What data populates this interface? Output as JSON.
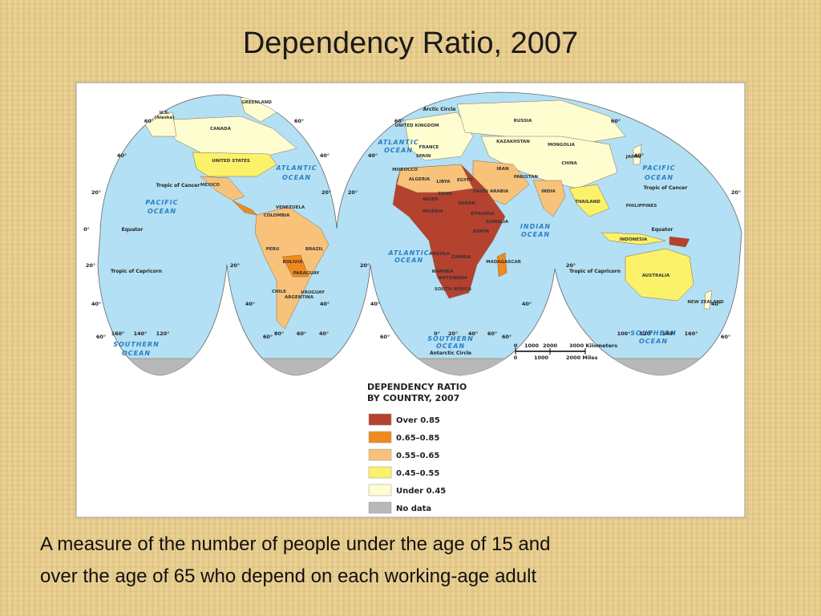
{
  "title": "Dependency Ratio, 2007",
  "caption": [
    "A measure of the number of people under the age of 15 and",
    "over the age of 65 who depend on each working-age adult"
  ],
  "map": {
    "labels": [
      "GREENLAND",
      "U.S.",
      "(Alaska)",
      "CANADA",
      "UNITED STATES",
      "MEXICO",
      "ATLANTIC",
      "OCEAN",
      "PACIFIC",
      "OCEAN",
      "Tropic of Cancer",
      "Equator",
      "Tropic of Capricorn",
      "BRAZIL",
      "PERU",
      "BOLIVIA",
      "ARGENTINA",
      "CHILE",
      "COLOMBIA",
      "VENEZUELA",
      "PARAGUAY",
      "URUGUAY",
      "SOUTHERN",
      "OCEAN",
      "Arctic Circle",
      "RUSSIA",
      "KAZAKHSTAN",
      "MONGOLIA",
      "CHINA",
      "INDIA",
      "IRAN",
      "ALGERIA",
      "LIBYA",
      "EGYPT",
      "SUDAN",
      "NIGER",
      "CHAD",
      "NIGERIA",
      "ETHIOPIA",
      "SOMALIA",
      "KENYA",
      "ANGOLA",
      "ZAMBIA",
      "NAMIBIA",
      "BOTSWANA",
      "SOUTH AFRICA",
      "MADAGASCAR",
      "ATLANTIC",
      "OCEAN",
      "ATLANTIC",
      "OCEAN",
      "INDIAN",
      "OCEAN",
      "SOUTHERN",
      "OCEAN",
      "Antarctic Circle",
      "PACIFIC",
      "OCEAN",
      "Tropic of Cancer",
      "Equator",
      "INDONESIA",
      "AUSTRALIA",
      "Tropic of Capricorn",
      "PHILIPPINES",
      "JAPAN",
      "NEW ZEALAND",
      "SOUTHERN",
      "OCEAN",
      "THAILAND",
      "PAKISTAN",
      "SAUDI ARABIA",
      "MOROCCO",
      "FRANCE",
      "SPAIN",
      "UNITED KINGDOM"
    ],
    "graticule_labels": [
      "60°",
      "40°",
      "20°",
      "0°",
      "20°",
      "40°",
      "60°",
      "40°",
      "20°",
      "20°",
      "40°",
      "60°",
      "60°",
      "40°",
      "20°",
      "20°",
      "40°",
      "60°",
      "60°",
      "40°",
      "20°",
      "40°",
      "60°",
      "60°",
      "40°",
      "20°",
      "40°",
      "60°",
      "160°",
      "140°",
      "120°",
      "80°",
      "60°",
      "40°",
      "0°",
      "20°",
      "40°",
      "60°",
      "100°",
      "120°",
      "140°",
      "160°"
    ],
    "scale": {
      "kilometers": [
        "0",
        "1000",
        "2000",
        "3000 Kilometers"
      ],
      "miles": [
        "0",
        "1000",
        "2000 Miles"
      ]
    }
  },
  "legend": {
    "title": [
      "DEPENDENCY RATIO",
      "BY COUNTRY, 2007"
    ],
    "items": [
      {
        "label": "Over 0.85",
        "color": "#b5412f"
      },
      {
        "label": "0.65–0.85",
        "color": "#f08a1e"
      },
      {
        "label": "0.55–0.65",
        "color": "#f8c27a"
      },
      {
        "label": "0.45–0.55",
        "color": "#fbf26a"
      },
      {
        "label": "Under 0.45",
        "color": "#fefdd0"
      },
      {
        "label": "No data",
        "color": "#b8b8b8"
      }
    ]
  }
}
